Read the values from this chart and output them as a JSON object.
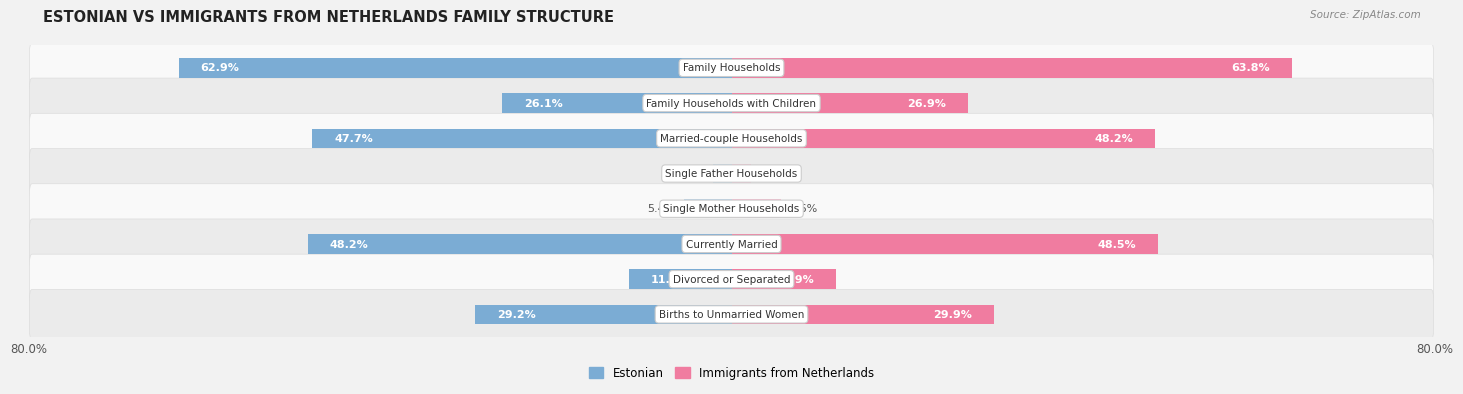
{
  "title": "ESTONIAN VS IMMIGRANTS FROM NETHERLANDS FAMILY STRUCTURE",
  "source": "Source: ZipAtlas.com",
  "categories": [
    "Family Households",
    "Family Households with Children",
    "Married-couple Households",
    "Single Father Households",
    "Single Mother Households",
    "Currently Married",
    "Divorced or Separated",
    "Births to Unmarried Women"
  ],
  "estonian_values": [
    62.9,
    26.1,
    47.7,
    2.1,
    5.4,
    48.2,
    11.7,
    29.2
  ],
  "netherlands_values": [
    63.8,
    26.9,
    48.2,
    2.2,
    5.6,
    48.5,
    11.9,
    29.9
  ],
  "estonian_color": "#7bacd4",
  "netherlands_color": "#f07ca0",
  "estonian_color_light": "#b8d4ea",
  "netherlands_color_light": "#f9bcd0",
  "estonian_label": "Estonian",
  "netherlands_label": "Immigrants from Netherlands",
  "x_max": 80.0,
  "background_color": "#f2f2f2",
  "row_bg_odd": "#f9f9f9",
  "row_bg_even": "#ebebeb",
  "title_color": "#222222",
  "source_color": "#888888",
  "label_inside_color": "#ffffff",
  "label_outside_color": "#555555",
  "category_text_color": "#333333"
}
